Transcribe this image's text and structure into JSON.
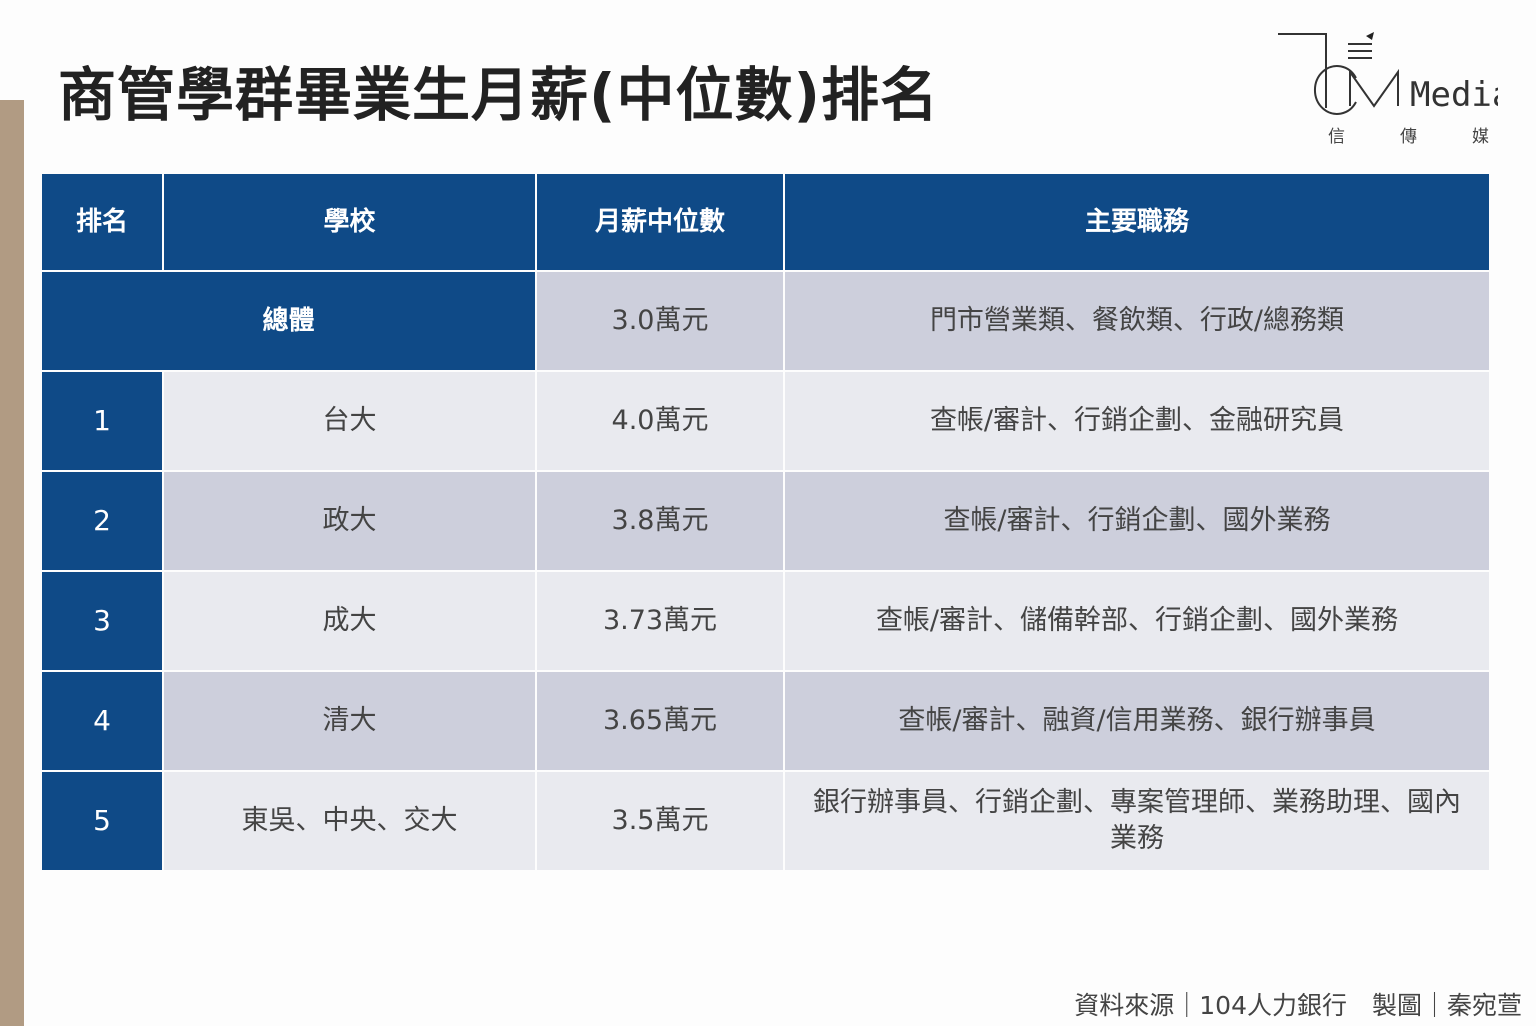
{
  "title": "商管學群畢業生月薪(中位數)排名",
  "logo": {
    "text": "Media",
    "sub": [
      "信",
      "傳",
      "媒"
    ]
  },
  "table": {
    "headers": [
      "排名",
      "學校",
      "月薪中位數",
      "主要職務"
    ],
    "overall": {
      "label": "總體",
      "salary": "3.0萬元",
      "jobs": "門市營業類、餐飲類、行政/總務類"
    },
    "rows": [
      {
        "rank": "1",
        "school": "台大",
        "salary": "4.0萬元",
        "jobs": "查帳/審計、行銷企劃、金融研究員"
      },
      {
        "rank": "2",
        "school": "政大",
        "salary": "3.8萬元",
        "jobs": "查帳/審計、行銷企劃、國外業務"
      },
      {
        "rank": "3",
        "school": "成大",
        "salary": "3.73萬元",
        "jobs": "查帳/審計、儲備幹部、行銷企劃、國外業務"
      },
      {
        "rank": "4",
        "school": "清大",
        "salary": "3.65萬元",
        "jobs": "查帳/審計、融資/信用業務、銀行辦事員"
      },
      {
        "rank": "5",
        "school": "東吳、中央、交大",
        "salary": "3.5萬元",
        "jobs": "銀行辦事員、行銷企劃、專案管理師、業務助理、國內業務"
      }
    ]
  },
  "footer": "資料來源｜104人力銀行　製圖｜秦宛萱"
}
